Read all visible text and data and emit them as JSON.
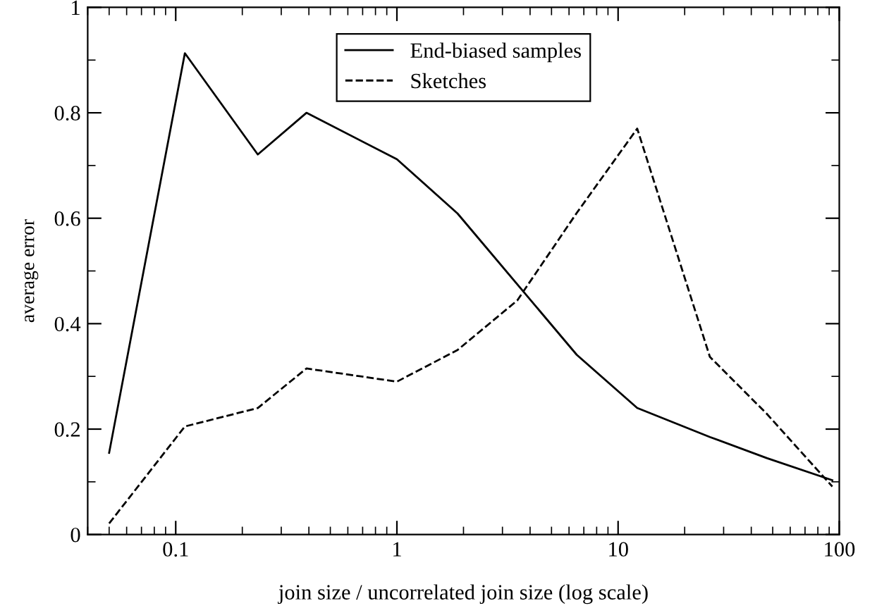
{
  "chart_data": {
    "type": "line",
    "xlabel": "join size / uncorrelated join size (log scale)",
    "ylabel": "average error",
    "series": [
      {
        "name": "End-biased samples",
        "color": "#000000",
        "line_style": "solid",
        "x": [
          0.05,
          0.11,
          0.235,
          0.39,
          1,
          1.88,
          6.5,
          12.2,
          26,
          47,
          93
        ],
        "values": [
          0.155,
          0.913,
          0.721,
          0.8,
          0.712,
          0.609,
          0.341,
          0.24,
          0.185,
          0.145,
          0.103
        ]
      },
      {
        "name": "Sketches",
        "color": "#000000",
        "line_style": "dashed",
        "x": [
          0.05,
          0.11,
          0.235,
          0.39,
          1,
          1.88,
          3.5,
          6.5,
          12.2,
          26,
          47,
          93
        ],
        "values": [
          0.021,
          0.205,
          0.24,
          0.315,
          0.29,
          0.35,
          0.444,
          0.61,
          0.77,
          0.337,
          0.229,
          0.091
        ]
      }
    ],
    "log": "x",
    "xlim": [
      0.04,
      100
    ],
    "xticks": [
      0.1,
      1,
      10,
      100
    ],
    "ylim": [
      0,
      1
    ],
    "yticks": [
      0,
      0.2,
      0.4,
      0.6,
      0.8,
      1
    ],
    "legend": "top",
    "grid": false,
    "marker": "none"
  }
}
